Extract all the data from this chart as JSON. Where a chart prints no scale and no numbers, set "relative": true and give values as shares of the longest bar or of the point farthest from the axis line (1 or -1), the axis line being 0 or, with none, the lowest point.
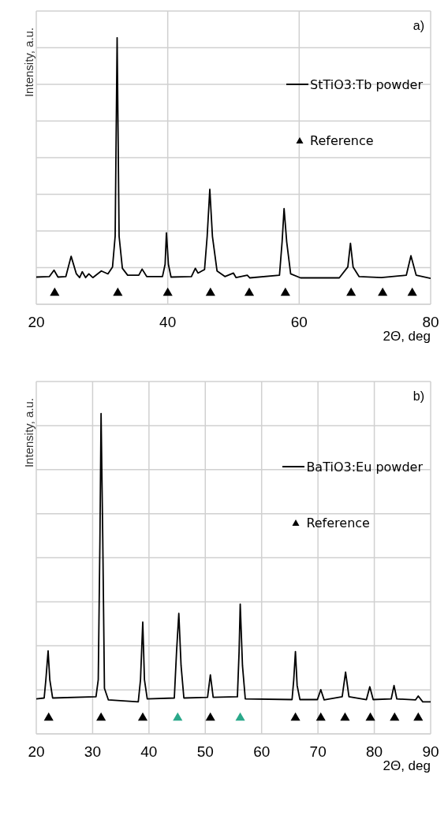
{
  "chart_data": [
    {
      "type": "line",
      "xlabel": "2Θ, deg",
      "ylabel": "Intensity, a.u.",
      "annotations": [
        "a)"
      ],
      "relative": true,
      "xlim": [
        20,
        80
      ],
      "xticks": [
        20,
        40,
        60,
        80
      ],
      "grid": true,
      "legend": "top right",
      "series": [
        {
          "name": "StTiO3:Tb powder",
          "color": "#000000",
          "x": [
            20,
            22.0,
            22.7,
            23.3,
            24.5,
            25.3,
            26.1,
            26.6,
            27.0,
            27.5,
            28.0,
            28.6,
            29.9,
            30.9,
            31.6,
            32.0,
            32.3,
            32.6,
            33.1,
            33.9,
            35.6,
            36.1,
            36.8,
            39.2,
            39.6,
            39.8,
            40.1,
            40.5,
            43.6,
            44.2,
            44.6,
            45.6,
            46.0,
            46.4,
            46.8,
            47.5,
            48.7,
            50.0,
            50.4,
            52.1,
            52.5,
            57.0,
            57.4,
            57.7,
            58.1,
            58.7,
            60.2,
            66.1,
            67.4,
            67.8,
            68.2,
            69.1,
            72.5,
            76.3,
            77.0,
            77.8,
            80
          ],
          "values": [
            0.102,
            0.104,
            0.128,
            0.102,
            0.104,
            0.18,
            0.114,
            0.1,
            0.122,
            0.1,
            0.114,
            0.1,
            0.125,
            0.114,
            0.14,
            0.255,
            1,
            0.255,
            0.135,
            0.109,
            0.109,
            0.132,
            0.104,
            0.104,
            0.15,
            0.268,
            0.15,
            0.102,
            0.104,
            0.135,
            0.117,
            0.13,
            0.255,
            0.431,
            0.255,
            0.125,
            0.104,
            0.117,
            0.1,
            0.109,
            0.099,
            0.109,
            0.234,
            0.359,
            0.234,
            0.114,
            0.099,
            0.099,
            0.14,
            0.229,
            0.14,
            0.104,
            0.1,
            0.109,
            0.182,
            0.109,
            0.097
          ]
        },
        {
          "name": "Reference",
          "type": "scatter",
          "marker": "triangle",
          "color": "#000000",
          "x": [
            22.8,
            32.4,
            40.0,
            46.5,
            52.4,
            57.9,
            67.9,
            72.7,
            77.2
          ],
          "values": [
            0.042,
            0.042,
            0.042,
            0.042,
            0.042,
            0.042,
            0.042,
            0.042,
            0.042
          ]
        }
      ]
    },
    {
      "type": "line",
      "xlabel": "2Θ, deg",
      "ylabel": "Intensity, a.u.",
      "annotations": [
        "b)"
      ],
      "relative": true,
      "xlim": [
        20,
        90
      ],
      "xticks": [
        20,
        30,
        40,
        50,
        60,
        70,
        80,
        90
      ],
      "grid": true,
      "legend": "top right",
      "series": [
        {
          "name": "BaTiO3:Eu powder",
          "color": "#000000",
          "x": [
            20,
            21.4,
            21.7,
            22.1,
            22.4,
            22.9,
            30.6,
            31.0,
            31.3,
            31.5,
            31.8,
            32.1,
            32.8,
            38.1,
            38.5,
            38.9,
            39.2,
            39.7,
            44.5,
            44.9,
            45.3,
            45.7,
            46.2,
            50.4,
            50.9,
            51.4,
            55.7,
            56.0,
            56.2,
            56.6,
            57.1,
            65.4,
            65.7,
            66.0,
            66.3,
            66.8,
            69.9,
            70.5,
            71.1,
            74.3,
            74.9,
            75.5,
            78.6,
            79.2,
            79.8,
            83.0,
            83.5,
            84.0,
            87.3,
            87.8,
            88.6,
            90
          ],
          "values": [
            0.109,
            0.112,
            0.169,
            0.259,
            0.169,
            0.112,
            0.116,
            0.169,
            0.609,
            1,
            0.609,
            0.142,
            0.106,
            0.1,
            0.169,
            0.349,
            0.169,
            0.109,
            0.112,
            0.257,
            0.376,
            0.213,
            0.112,
            0.114,
            0.184,
            0.114,
            0.116,
            0.257,
            0.405,
            0.213,
            0.109,
            0.107,
            0.169,
            0.257,
            0.151,
            0.107,
            0.107,
            0.138,
            0.106,
            0.116,
            0.193,
            0.116,
            0.107,
            0.147,
            0.107,
            0.109,
            0.151,
            0.109,
            0.106,
            0.118,
            0.1,
            0.1
          ]
        },
        {
          "name": "Reference",
          "type": "scatter",
          "marker": "triangle",
          "color": "#000000",
          "colors": [
            "#000000",
            "#000000",
            "#000000",
            "#2aa88a",
            "#000000",
            "#2aa88a",
            "#000000",
            "#000000",
            "#000000",
            "#000000",
            "#000000",
            "#000000"
          ],
          "x": [
            22.2,
            31.5,
            38.9,
            45.1,
            50.9,
            56.2,
            66.0,
            70.5,
            74.8,
            79.3,
            83.6,
            87.8
          ],
          "values": [
            0.05,
            0.05,
            0.05,
            0.05,
            0.05,
            0.05,
            0.05,
            0.05,
            0.05,
            0.05,
            0.05,
            0.05
          ]
        }
      ]
    }
  ]
}
